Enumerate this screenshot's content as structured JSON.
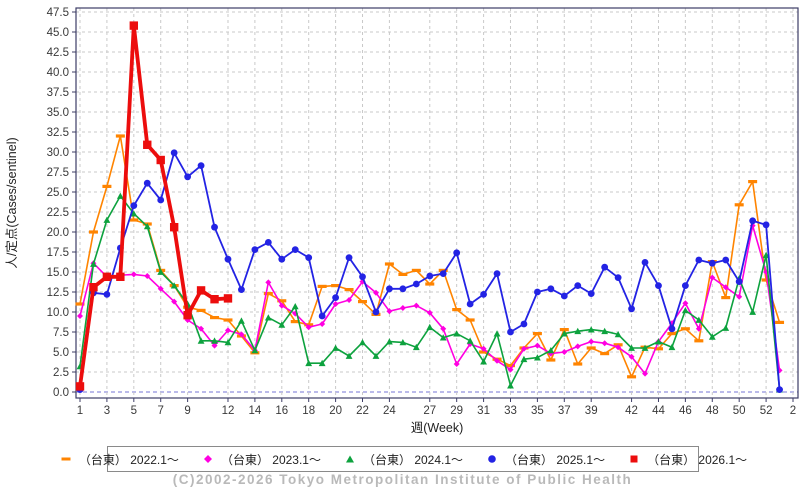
{
  "footer": {
    "copyright": "(C)2002-2026 Tokyo Metropolitan Institute of Public Health"
  },
  "chart_data": {
    "type": "line",
    "title": "",
    "xlabel": "週(Week)",
    "ylabel": "人/定点(Cases/sentinel)",
    "ylim": [
      0,
      47.5
    ],
    "y_tick_step": 2.5,
    "x_tick_weeks": [
      1,
      3,
      5,
      7,
      9,
      12,
      14,
      16,
      18,
      20,
      22,
      24,
      27,
      29,
      31,
      33,
      35,
      37,
      39,
      42,
      44,
      46,
      48,
      50,
      52,
      54
    ],
    "x_tick_labels": [
      "1",
      "3",
      "5",
      "7",
      "9",
      "12",
      "14",
      "16",
      "18",
      "20",
      "22",
      "24",
      "27",
      "29",
      "31",
      "33",
      "35",
      "37",
      "39",
      "42",
      "44",
      "46",
      "48",
      "50",
      "52",
      "2"
    ],
    "x_range_weeks": [
      1,
      54
    ],
    "grid": true,
    "legend_position": "bottom",
    "colors": {
      "grid": "#c9c9c9",
      "zero_line": "#9191dd",
      "plot_border": "#3d3d66",
      "tick_text": "#3a3a3a",
      "axis_title": "#222222"
    },
    "series": [
      {
        "name": "（台東） 2022.1～",
        "color": "#ff8400",
        "marker": "dash",
        "line_width": 1.6,
        "start_week": 1,
        "values": [
          11.0,
          20.0,
          25.7,
          32.0,
          21.5,
          21.0,
          15.2,
          13.3,
          10.6,
          10.2,
          9.3,
          9.0,
          7.0,
          4.9,
          12.3,
          11.4,
          8.8,
          8.4,
          13.2,
          13.3,
          12.8,
          11.3,
          9.7,
          16.0,
          14.7,
          15.2,
          13.5,
          15.2,
          10.3,
          9.0,
          5.0,
          4.1,
          3.3,
          5.5,
          7.3,
          4.0,
          7.8,
          3.5,
          5.5,
          4.8,
          5.9,
          1.9,
          5.6,
          5.4,
          7.3,
          7.9,
          6.4,
          16.3,
          11.8,
          23.4,
          26.3,
          14.0,
          8.7
        ]
      },
      {
        "name": "（台東） 2023.1～",
        "color": "#ff00e1",
        "marker": "diamond",
        "line_width": 1.6,
        "start_week": 1,
        "values": [
          9.5,
          16.1,
          14.4,
          14.6,
          14.7,
          14.5,
          12.9,
          11.3,
          9.0,
          7.9,
          5.8,
          7.7,
          7.2,
          5.2,
          13.7,
          10.8,
          9.8,
          8.1,
          8.5,
          11.0,
          11.5,
          13.8,
          12.4,
          10.1,
          10.5,
          10.8,
          9.9,
          7.9,
          3.5,
          6.0,
          5.4,
          3.9,
          2.8,
          5.4,
          5.8,
          4.8,
          5.0,
          5.7,
          6.3,
          6.1,
          5.6,
          4.4,
          2.3,
          6.3,
          8.6,
          11.1,
          7.9,
          14.3,
          13.1,
          11.9,
          20.8,
          15.0,
          2.7
        ]
      },
      {
        "name": "（台東） 2024.1～",
        "color": "#0da23e",
        "marker": "triangle",
        "line_width": 1.6,
        "start_week": 1,
        "values": [
          3.2,
          16.0,
          21.5,
          24.5,
          22.3,
          20.7,
          15.0,
          13.3,
          11.0,
          6.4,
          6.4,
          6.2,
          8.9,
          5.2,
          9.3,
          8.4,
          10.7,
          3.6,
          3.6,
          5.5,
          4.5,
          6.2,
          4.5,
          6.3,
          6.2,
          5.6,
          8.1,
          6.8,
          7.3,
          6.4,
          3.8,
          7.3,
          0.8,
          4.1,
          4.3,
          5.2,
          7.3,
          7.6,
          7.8,
          7.6,
          7.2,
          5.5,
          5.5,
          6.3,
          5.6,
          10.2,
          9.0,
          6.9,
          8.0,
          14.2,
          10.0,
          17.1,
          0.3
        ]
      },
      {
        "name": "（台東） 2025.1～",
        "color": "#2323e4",
        "marker": "circle",
        "line_width": 1.8,
        "start_week": 1,
        "values": [
          0.3,
          12.4,
          12.2,
          18.0,
          23.3,
          26.1,
          24.0,
          29.9,
          26.9,
          28.3,
          20.6,
          16.6,
          12.8,
          17.8,
          18.7,
          16.6,
          17.8,
          16.8,
          9.5,
          11.8,
          16.8,
          14.4,
          10.0,
          12.9,
          12.9,
          13.5,
          14.5,
          14.8,
          17.4,
          11.0,
          12.2,
          14.8,
          7.5,
          8.5,
          12.5,
          12.9,
          12.0,
          13.3,
          12.3,
          15.6,
          14.3,
          10.4,
          16.2,
          13.3,
          7.9,
          13.3,
          16.5,
          16.1,
          16.5,
          13.8,
          21.4,
          20.9,
          0.3
        ]
      },
      {
        "name": "（台東） 2026.1～",
        "color": "#ec0d0d",
        "marker": "square",
        "line_width": 3.8,
        "start_week": 1,
        "values": [
          0.7,
          13.1,
          14.4,
          14.4,
          45.8,
          30.9,
          29.0,
          20.6,
          9.6,
          12.7,
          11.6,
          11.7
        ]
      }
    ]
  }
}
